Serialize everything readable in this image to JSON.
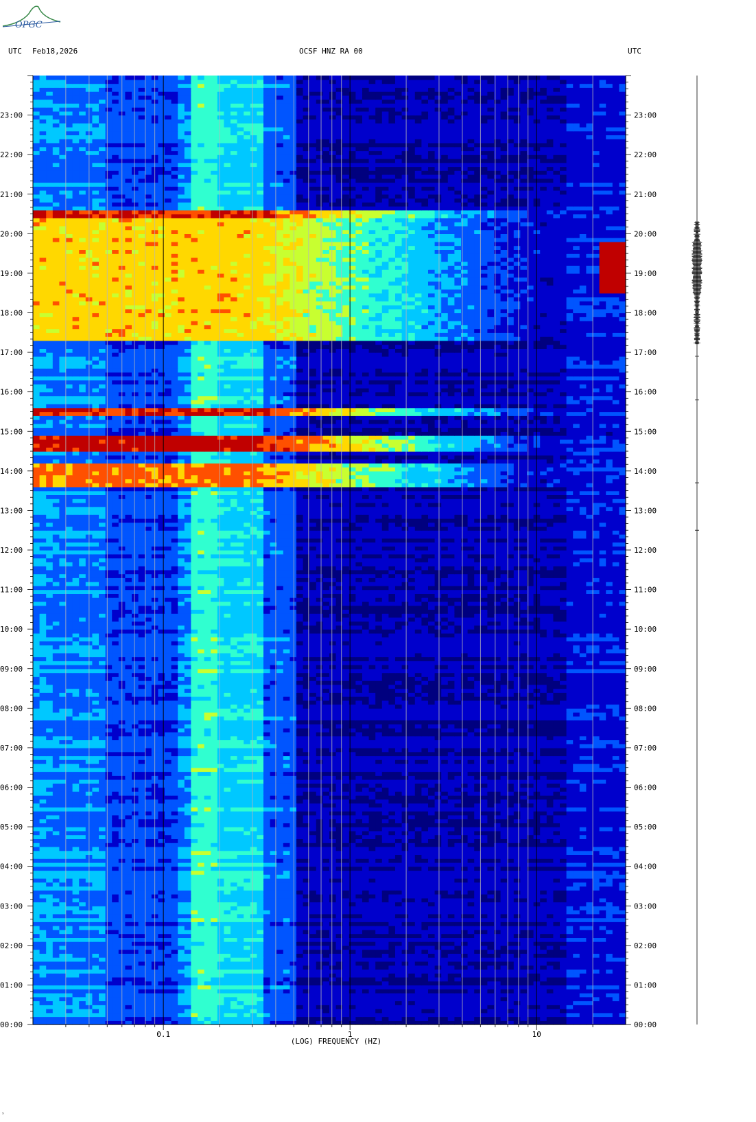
{
  "header": {
    "left_utc": "UTC",
    "date": "Feb18,2026",
    "station": "OCSF HNZ RA 00",
    "right_utc": "UTC"
  },
  "logo": {
    "text": "OPGC",
    "color": "#3a8a4a"
  },
  "footnote": "ˢ",
  "chart_data": {
    "type": "heatmap",
    "title": "OCSF HNZ RA 00",
    "xlabel": "(LOG) FREQUENCY (HZ)",
    "ylabel": "",
    "x_scale": "log",
    "xlim": [
      0.02,
      30
    ],
    "x_tick_labels": [
      {
        "value": 0.1,
        "label": "0.1"
      },
      {
        "value": 1,
        "label": "1"
      },
      {
        "value": 10,
        "label": "10"
      }
    ],
    "ylim_hours": [
      0,
      24
    ],
    "y_tick_labels": [
      "00:00",
      "01:00",
      "02:00",
      "03:00",
      "04:00",
      "05:00",
      "06:00",
      "07:00",
      "08:00",
      "09:00",
      "10:00",
      "11:00",
      "12:00",
      "13:00",
      "14:00",
      "15:00",
      "16:00",
      "17:00",
      "18:00",
      "19:00",
      "20:00",
      "21:00",
      "22:00",
      "23:00"
    ],
    "grid_frequencies": [
      0.03,
      0.04,
      0.05,
      0.06,
      0.07,
      0.08,
      0.09,
      0.1,
      0.2,
      0.3,
      0.4,
      0.5,
      0.6,
      0.7,
      0.8,
      0.9,
      1,
      2,
      3,
      4,
      5,
      6,
      7,
      8,
      9,
      10,
      20
    ],
    "colormap": [
      "#00007f",
      "#0000cc",
      "#0055ff",
      "#00c8ff",
      "#30ffd0",
      "#c8ff30",
      "#ffd800",
      "#ff5000",
      "#c00000"
    ],
    "events": [
      {
        "start_hour": 13.6,
        "end_hour": 14.2,
        "intensity": 0.85
      },
      {
        "start_hour": 14.55,
        "end_hour": 14.9,
        "intensity": 1.0
      },
      {
        "start_hour": 15.4,
        "end_hour": 15.6,
        "intensity": 0.95
      },
      {
        "start_hour": 17.3,
        "end_hour": 20.6,
        "intensity": 0.75
      },
      {
        "start_hour": 20.4,
        "end_hour": 20.6,
        "intensity": 0.95
      }
    ],
    "trace_colors": {
      "grid_minor": "#b8b8b8",
      "grid_major": "#000000",
      "trace": "#000000",
      "hot_spot": "#c00000"
    }
  }
}
